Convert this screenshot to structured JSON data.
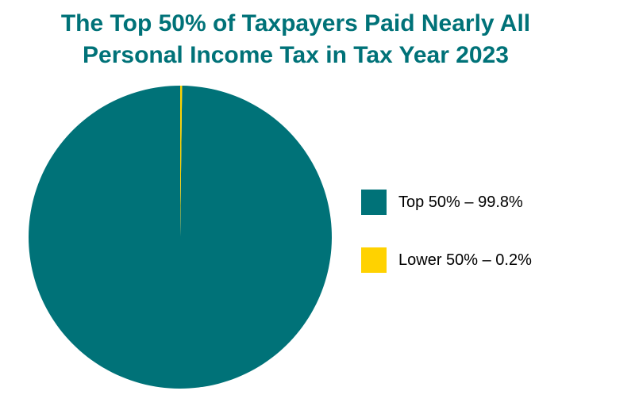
{
  "chart_data": {
    "type": "pie",
    "title_lines": [
      "The Top 50% of Taxpayers Paid Nearly All",
      "Personal Income Tax in Tax Year 2023"
    ],
    "slices": [
      {
        "name": "Top 50%",
        "value": 99.8,
        "color": "#007278",
        "legend_label": "Top 50% – 99.8%"
      },
      {
        "name": "Lower 50%",
        "value": 0.2,
        "color": "#FFD200",
        "legend_label": "Lower 50% – 0.2%"
      }
    ],
    "start_slice": "Top 50%",
    "direction": "clockwise",
    "legend_position": "right"
  }
}
